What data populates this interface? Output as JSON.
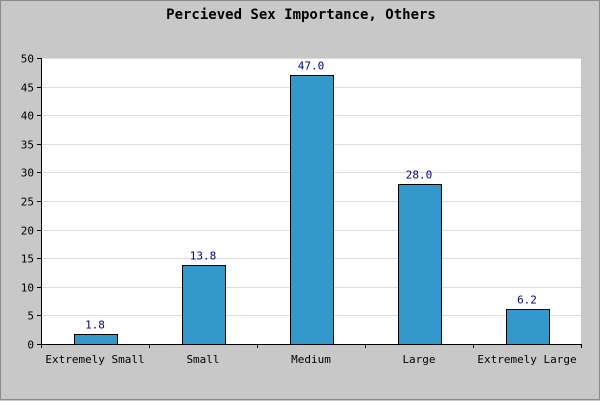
{
  "chart_data": {
    "type": "bar",
    "title": "Percieved Sex Importance, Others",
    "xlabel": "",
    "ylabel": "",
    "categories": [
      "Extremely Small",
      "Small",
      "Medium",
      "Large",
      "Extremely Large"
    ],
    "values": [
      1.8,
      13.8,
      47.0,
      28.0,
      6.2
    ],
    "data_labels": [
      "1.8",
      "13.8",
      "47.0",
      "28.0",
      "6.2"
    ],
    "ylim": [
      0,
      50
    ],
    "yticks": [
      0,
      5,
      10,
      15,
      20,
      25,
      30,
      35,
      40,
      45,
      50
    ],
    "grid": true,
    "legend": "none",
    "colors": {
      "bar": "#3399cc",
      "bar_border": "#000000",
      "plot_background": "#ffffff",
      "page_background": "#c8c8c8",
      "grid": "#dddddd",
      "data_label": "#000080"
    }
  }
}
